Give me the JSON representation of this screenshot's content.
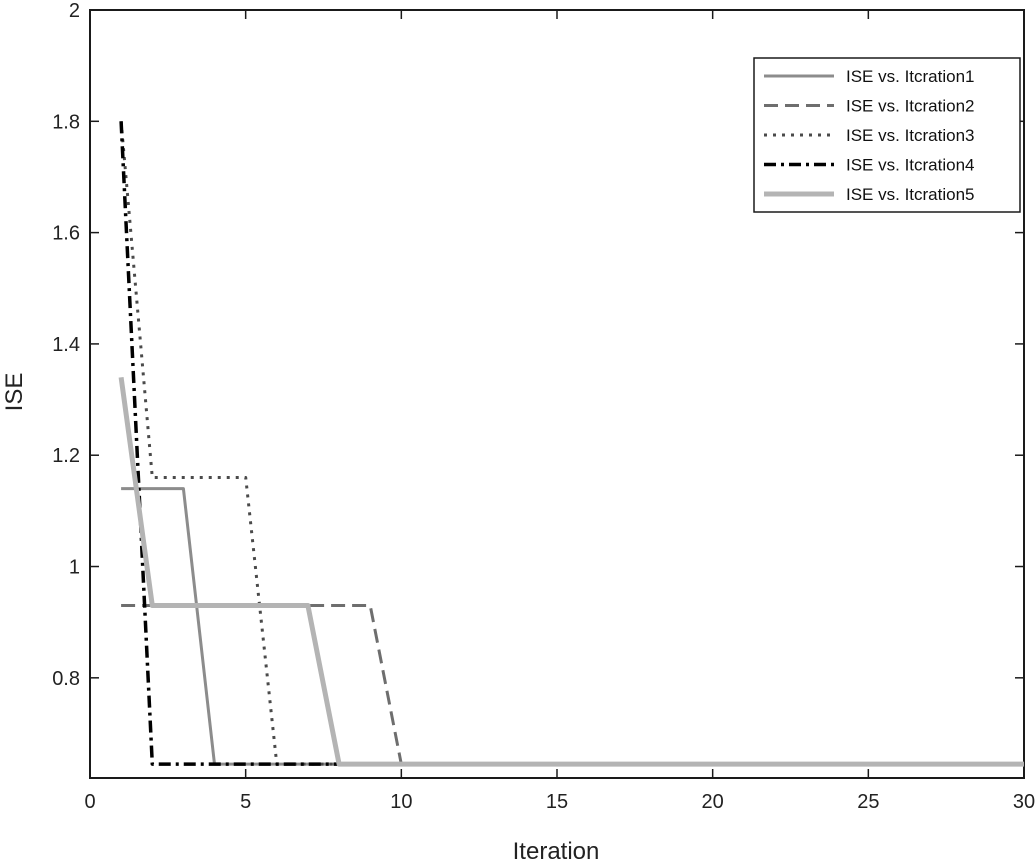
{
  "chart_data": {
    "type": "line",
    "title": "",
    "xlabel": "Iteration",
    "ylabel": "ISE",
    "xlim": [
      0,
      30
    ],
    "ylim": [
      0.62,
      2
    ],
    "xticks": [
      0,
      5,
      10,
      15,
      20,
      25,
      30
    ],
    "yticks": [
      0.8,
      1,
      1.2,
      1.4,
      1.6,
      1.8,
      2
    ],
    "grid": false,
    "legend_position": "top-right",
    "series": [
      {
        "name": "ISE vs. Itcration1",
        "color": "#8c8c8c",
        "dash": "solid",
        "points": [
          [
            1,
            1.14
          ],
          [
            3,
            1.14
          ],
          [
            4,
            0.645
          ],
          [
            30,
            0.645
          ]
        ]
      },
      {
        "name": "ISE vs. Itcration2",
        "color": "#6e6e6e",
        "dash": "dashed",
        "points": [
          [
            1,
            0.93
          ],
          [
            9,
            0.93
          ],
          [
            10,
            0.645
          ],
          [
            30,
            0.645
          ]
        ]
      },
      {
        "name": "ISE vs. Itcration3",
        "color": "#4a4a4a",
        "dash": "dotted",
        "points": [
          [
            1,
            1.8
          ],
          [
            2,
            1.16
          ],
          [
            5,
            1.16
          ],
          [
            6,
            0.645
          ],
          [
            30,
            0.645
          ]
        ]
      },
      {
        "name": "ISE vs. Itcration4",
        "color": "#000000",
        "dash": "dashdot",
        "points": [
          [
            1,
            1.8
          ],
          [
            2,
            0.645
          ],
          [
            30,
            0.645
          ]
        ]
      },
      {
        "name": "ISE vs. Itcration5",
        "color": "#b4b4b4",
        "dash": "solid-thick",
        "points": [
          [
            1,
            1.34
          ],
          [
            2,
            0.93
          ],
          [
            7,
            0.93
          ],
          [
            8,
            0.645
          ],
          [
            30,
            0.645
          ]
        ]
      }
    ]
  }
}
